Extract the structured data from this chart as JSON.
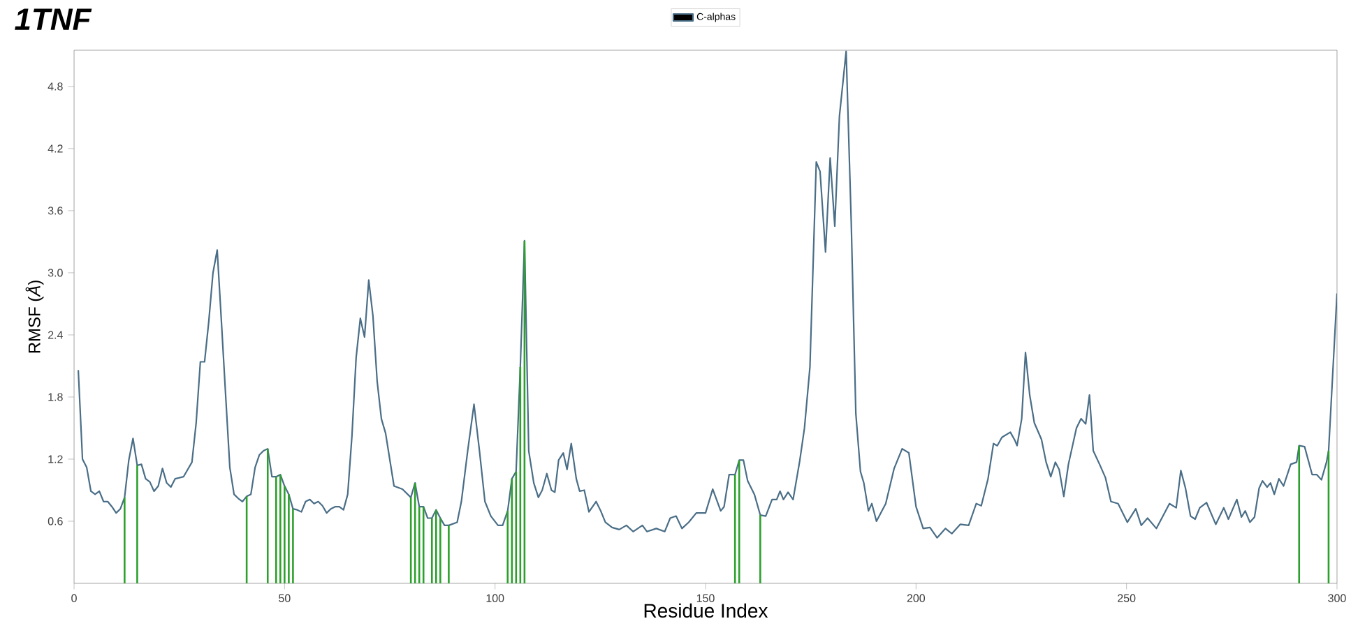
{
  "chart_data": {
    "type": "line",
    "title": "1TNF",
    "xlabel": "Residue Index",
    "ylabel": "RMSF (*Å*)",
    "xlim": [
      0,
      300
    ],
    "xticks": [
      0,
      50,
      100,
      150,
      200,
      250,
      300
    ],
    "ylim": [
      0,
      5.15
    ],
    "yticks": [
      0.6,
      1.2,
      1.8,
      2.4,
      {
        "value": 3.0,
        "label": "3.0"
      },
      3.6,
      4.2,
      4.8
    ],
    "legend": "top",
    "series": [
      {
        "name": "C-alphas",
        "color": "#4a6e87",
        "x": [
          1,
          2,
          3,
          4,
          5,
          6,
          7,
          8,
          9,
          10,
          11,
          12,
          13,
          14,
          15,
          16,
          17,
          18,
          19,
          20,
          21,
          22,
          23,
          24,
          25,
          26,
          27,
          28,
          29,
          30,
          31,
          32,
          33,
          34,
          35,
          36,
          37,
          38,
          39,
          40,
          41,
          42,
          43,
          44,
          45,
          46,
          47,
          48,
          49,
          50,
          51,
          52,
          53,
          54,
          55,
          56,
          57,
          58,
          59,
          60,
          61,
          62,
          63,
          64,
          65,
          66,
          67,
          68,
          69,
          70,
          71,
          72,
          73,
          74,
          76,
          78,
          80,
          81,
          82,
          83,
          84,
          85,
          86,
          87,
          88,
          89,
          91,
          92,
          93.5,
          95,
          96.3,
          97.6,
          99,
          100.7,
          101.8,
          103,
          104,
          105,
          106,
          107,
          108,
          109.2,
          110.3,
          111.2,
          112.3,
          113.4,
          114.2,
          115.1,
          116.2,
          117.1,
          118.1,
          119.3,
          120.1,
          121.2,
          122.3,
          124,
          125.1,
          126.2,
          127.8,
          129.5,
          131.2,
          132.8,
          135,
          136.1,
          138.3,
          140.3,
          141.6,
          143,
          144.4,
          146,
          147.8,
          150,
          151.7,
          153.6,
          154.4,
          155.6,
          157,
          158,
          159,
          160,
          161.6,
          163,
          164.3,
          165.8,
          166.9,
          167.7,
          168.5,
          169.6,
          170.8,
          172.4,
          173.5,
          174.8,
          176.3,
          177.2,
          178.5,
          179.6,
          180.7,
          181.8,
          183.4,
          184.6,
          185.7,
          186.8,
          187.6,
          188.7,
          189.5,
          190.6,
          192.8,
          194.8,
          196.7,
          198.3,
          200,
          201.7,
          203.3,
          205,
          207,
          208.5,
          210.5,
          212.5,
          214.3,
          215.5,
          217.1,
          218.4,
          219.3,
          220.4,
          222.4,
          223.5,
          224,
          225.1,
          226,
          227,
          228.1,
          229.8,
          230.9,
          232,
          233.1,
          234,
          235.1,
          236.2,
          238.1,
          239.2,
          240.3,
          241.2,
          242.1,
          243.6,
          245,
          246.3,
          248,
          250.2,
          252.2,
          253.5,
          255,
          257.1,
          260.2,
          261.8,
          262.9,
          264,
          265.2,
          266.3,
          267.4,
          269,
          271.2,
          273.1,
          274.2,
          276.2,
          277.3,
          278.2,
          279.3,
          280.4,
          281.5,
          282.3,
          283.4,
          284.2,
          285.1,
          286.2,
          287.3,
          289,
          290.4,
          291,
          292.3,
          294.1,
          295.2,
          296.3,
          297.5,
          298,
          300
        ],
        "values": [
          2.06,
          1.2,
          1.12,
          0.89,
          0.86,
          0.89,
          0.79,
          0.79,
          0.74,
          0.68,
          0.72,
          0.83,
          1.19,
          1.4,
          1.14,
          1.15,
          1.01,
          0.98,
          0.89,
          0.94,
          1.11,
          0.97,
          0.93,
          1.01,
          1.02,
          1.03,
          1.1,
          1.17,
          1.55,
          2.14,
          2.14,
          2.53,
          3.0,
          3.22,
          2.53,
          1.82,
          1.12,
          0.86,
          0.82,
          0.79,
          0.84,
          0.86,
          1.12,
          1.24,
          1.28,
          1.3,
          1.03,
          1.03,
          1.05,
          0.94,
          0.86,
          0.72,
          0.71,
          0.69,
          0.79,
          0.81,
          0.77,
          0.79,
          0.75,
          0.68,
          0.72,
          0.74,
          0.74,
          0.71,
          0.86,
          1.42,
          2.18,
          2.56,
          2.38,
          2.93,
          2.58,
          1.95,
          1.59,
          1.45,
          0.94,
          0.91,
          0.83,
          0.97,
          0.74,
          0.74,
          0.63,
          0.63,
          0.71,
          0.63,
          0.56,
          0.56,
          0.59,
          0.79,
          1.28,
          1.73,
          1.28,
          0.79,
          0.65,
          0.56,
          0.56,
          0.7,
          1.01,
          1.08,
          2.09,
          3.31,
          1.28,
          0.97,
          0.83,
          0.9,
          1.06,
          0.9,
          0.88,
          1.19,
          1.26,
          1.1,
          1.35,
          1.01,
          0.89,
          0.9,
          0.69,
          0.79,
          0.7,
          0.59,
          0.54,
          0.52,
          0.56,
          0.5,
          0.56,
          0.5,
          0.53,
          0.5,
          0.63,
          0.65,
          0.53,
          0.59,
          0.68,
          0.68,
          0.91,
          0.7,
          0.74,
          1.05,
          1.05,
          1.19,
          1.19,
          0.99,
          0.86,
          0.66,
          0.65,
          0.81,
          0.81,
          0.89,
          0.81,
          0.88,
          0.81,
          1.19,
          1.5,
          2.09,
          4.07,
          3.98,
          3.2,
          4.11,
          3.45,
          4.51,
          5.14,
          3.5,
          1.64,
          1.08,
          0.97,
          0.7,
          0.77,
          0.6,
          0.77,
          1.11,
          1.3,
          1.26,
          0.74,
          0.53,
          0.54,
          0.44,
          0.53,
          0.48,
          0.57,
          0.56,
          0.77,
          0.75,
          1.01,
          1.35,
          1.33,
          1.41,
          1.46,
          1.38,
          1.33,
          1.59,
          2.23,
          1.82,
          1.55,
          1.39,
          1.17,
          1.03,
          1.17,
          1.1,
          0.84,
          1.15,
          1.5,
          1.59,
          1.54,
          1.82,
          1.28,
          1.15,
          1.02,
          0.79,
          0.77,
          0.59,
          0.72,
          0.56,
          0.63,
          0.53,
          0.77,
          0.73,
          1.09,
          0.92,
          0.65,
          0.62,
          0.73,
          0.78,
          0.57,
          0.73,
          0.62,
          0.81,
          0.64,
          0.7,
          0.59,
          0.64,
          0.92,
          0.99,
          0.93,
          0.97,
          0.86,
          1.01,
          0.94,
          1.15,
          1.17,
          1.33,
          1.32,
          1.05,
          1.05,
          1.0,
          1.17,
          1.28,
          2.8
        ]
      },
      {
        "type": "bar",
        "color": "#2ca02c",
        "x": [
          12,
          15,
          41,
          46,
          48,
          49,
          50,
          51,
          52,
          80,
          81,
          82,
          83,
          85,
          86,
          87,
          89,
          103,
          104,
          105,
          106,
          107,
          157,
          158,
          163,
          291,
          298
        ],
        "values": [
          0.83,
          1.14,
          0.84,
          1.3,
          1.03,
          1.05,
          0.94,
          0.86,
          0.72,
          0.83,
          0.97,
          0.74,
          0.74,
          0.63,
          0.71,
          0.63,
          0.56,
          0.7,
          1.01,
          1.08,
          2.09,
          3.31,
          1.05,
          1.19,
          0.66,
          1.33,
          1.28
        ]
      }
    ]
  }
}
